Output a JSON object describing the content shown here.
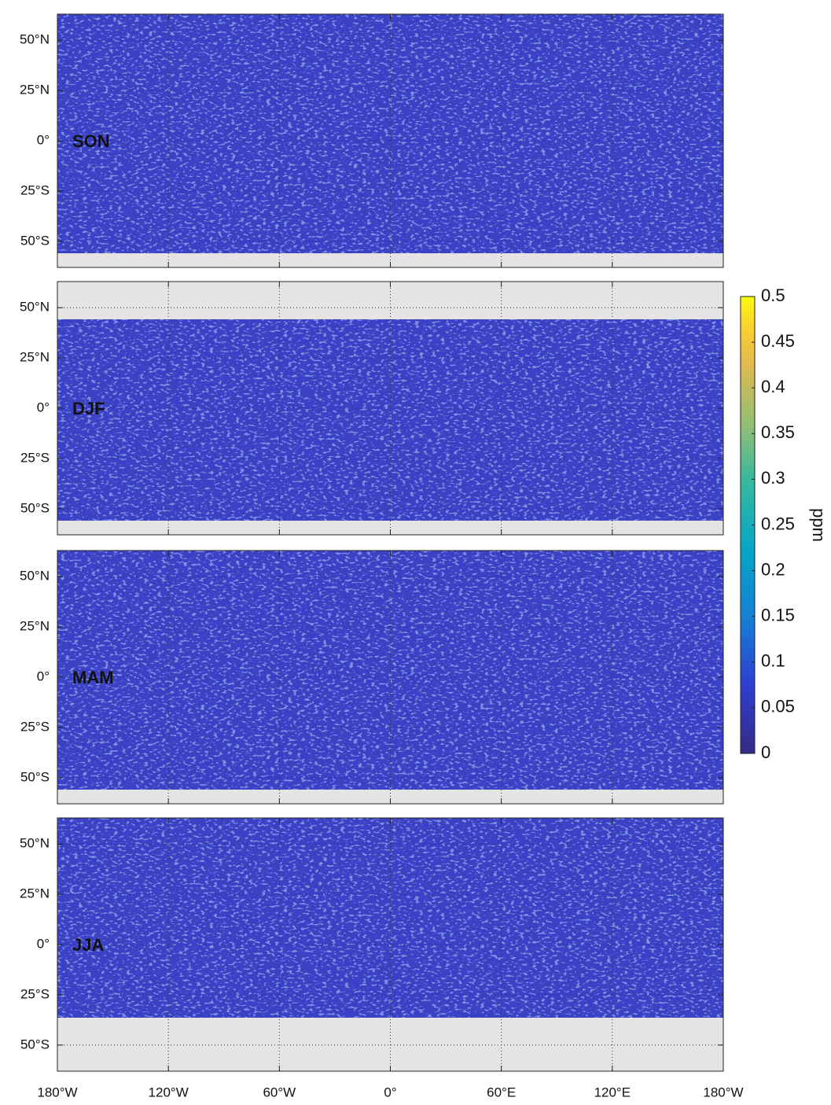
{
  "map": {
    "panels": [
      {
        "label": "SON"
      },
      {
        "label": "DJF"
      },
      {
        "label": "MAM"
      },
      {
        "label": "JJA"
      }
    ],
    "lat_range": [
      -63,
      63
    ],
    "lon_range": [
      -180,
      180
    ],
    "lat_ticks": [
      {
        "value": 50,
        "label": "50°N"
      },
      {
        "value": 25,
        "label": "25°N"
      },
      {
        "value": 0,
        "label": "0°"
      },
      {
        "value": -25,
        "label": "25°S"
      },
      {
        "value": -50,
        "label": "50°S"
      }
    ],
    "lon_ticks": [
      {
        "value": -180,
        "label": "180°W"
      },
      {
        "value": -120,
        "label": "120°W"
      },
      {
        "value": -60,
        "label": "60°W"
      },
      {
        "value": 0,
        "label": "0°"
      },
      {
        "value": 60,
        "label": "60°E"
      },
      {
        "value": 120,
        "label": "120°E"
      },
      {
        "value": 180,
        "label": "180°W"
      }
    ],
    "colorbar": {
      "label": "ppm",
      "range": [
        0,
        0.5
      ],
      "ticks": [
        0,
        0.05,
        0.1,
        0.15,
        0.2,
        0.25,
        0.3,
        0.35,
        0.4,
        0.45,
        0.5
      ]
    }
  }
}
